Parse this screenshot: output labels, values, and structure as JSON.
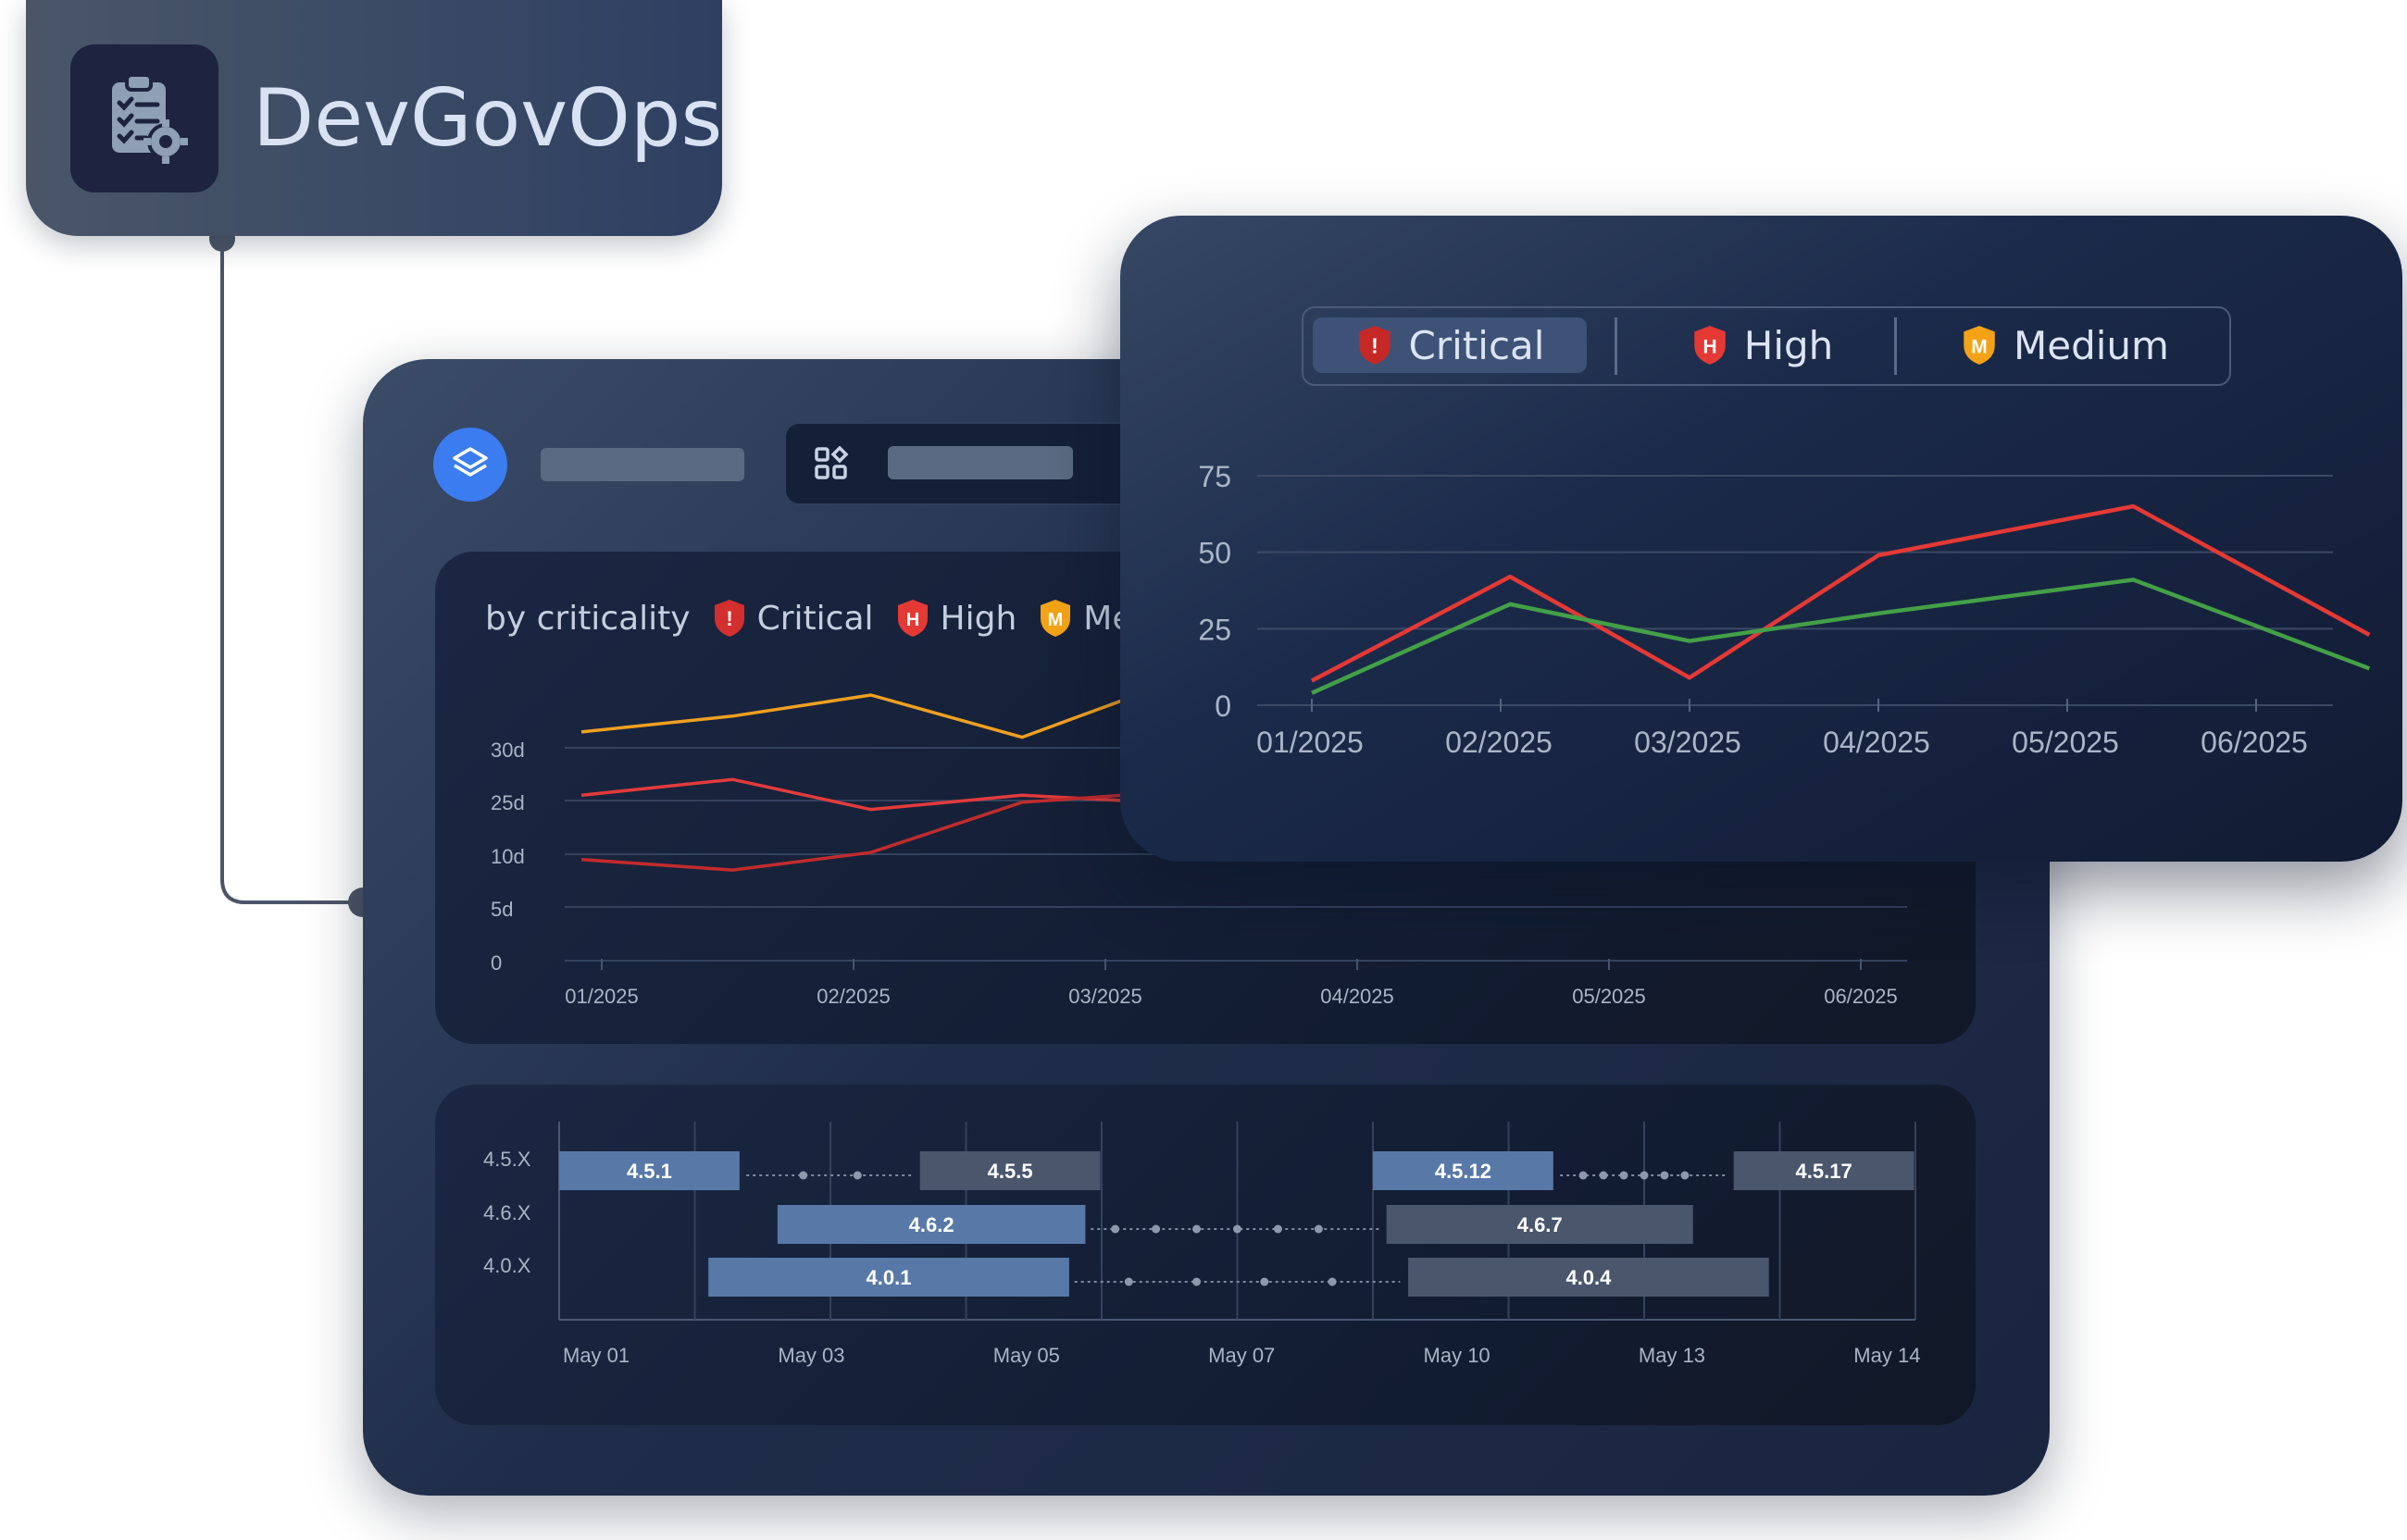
{
  "brand": {
    "title": "DevGovOps",
    "icon": "clipboard-gear-icon"
  },
  "main_panel": {
    "layer_icon": "layers-icon",
    "apps_icon": "apps-grid-icon"
  },
  "criticality_card": {
    "heading": "by criticality",
    "legend": [
      {
        "badge": "!",
        "label": "Critical",
        "color": "#d32f2f"
      },
      {
        "badge": "H",
        "label": "High",
        "color": "#e53935"
      },
      {
        "badge": "M",
        "label": "Medium",
        "color": "#f4a316"
      }
    ]
  },
  "front_card": {
    "tabs": [
      {
        "badge": "!",
        "label": "Critical",
        "active": true
      },
      {
        "badge": "H",
        "label": "High",
        "active": false
      },
      {
        "badge": "M",
        "label": "Medium",
        "active": false
      }
    ]
  },
  "chart_data": [
    {
      "type": "line",
      "yticks": [
        "0",
        "5d",
        "10d",
        "25d",
        "30d"
      ],
      "x": [
        "01/2025",
        "02/2025",
        "03/2025",
        "04/2025",
        "05/2025",
        "06/2025"
      ],
      "series": [
        {
          "color": "#f0a020",
          "points": [
            [
              0,
              31.5
            ],
            [
              0.6,
              33
            ],
            [
              1.15,
              35
            ],
            [
              1.75,
              31
            ],
            [
              2.15,
              34.5
            ]
          ]
        },
        {
          "color": "#e23b3b",
          "points": [
            [
              0,
              25.5
            ],
            [
              0.6,
              27
            ],
            [
              1.15,
              22.5
            ],
            [
              1.75,
              25.5
            ],
            [
              2.15,
              25
            ]
          ]
        },
        {
          "color": "#c22b2b",
          "points": [
            [
              0,
              9.5
            ],
            [
              0.6,
              8.5
            ],
            [
              1.15,
              10.5
            ],
            [
              1.75,
              24.5
            ],
            [
              2.15,
              25.5
            ]
          ]
        }
      ]
    },
    {
      "type": "line",
      "yticks": [
        "0",
        "25",
        "50",
        "75"
      ],
      "ylim": [
        0,
        75
      ],
      "x": [
        "01/2025",
        "02/2025",
        "03/2025",
        "04/2025",
        "05/2025",
        "06/2025"
      ],
      "series": [
        {
          "color": "#e53935",
          "points": [
            [
              0,
              8
            ],
            [
              1.05,
              42
            ],
            [
              2.0,
              9
            ],
            [
              3.0,
              49
            ],
            [
              4.35,
              65
            ],
            [
              5.6,
              23
            ]
          ]
        },
        {
          "color": "#43a047",
          "points": [
            [
              0,
              4
            ],
            [
              1.05,
              33
            ],
            [
              2.0,
              21
            ],
            [
              3.0,
              30
            ],
            [
              4.35,
              41
            ],
            [
              5.6,
              12
            ]
          ]
        }
      ]
    },
    {
      "type": "gantt",
      "rows": [
        "4.5.X",
        "4.6.X",
        "4.0.X"
      ],
      "x": [
        "May 01",
        "May 03",
        "May 05",
        "May 07",
        "May 10",
        "May 13",
        "May 14"
      ],
      "bars": [
        {
          "row": 0,
          "label": "4.5.1",
          "start": 0,
          "end": 1.33,
          "tone": "light"
        },
        {
          "row": 0,
          "label": "4.5.5",
          "start": 2.66,
          "end": 3.99,
          "tone": "dark"
        },
        {
          "row": 0,
          "label": "4.5.12",
          "start": 6.0,
          "end": 7.33,
          "tone": "light"
        },
        {
          "row": 0,
          "label": "4.5.17",
          "start": 8.66,
          "end": 9.99,
          "tone": "dark"
        },
        {
          "row": 1,
          "label": "4.6.2",
          "start": 1.61,
          "end": 3.88,
          "tone": "light"
        },
        {
          "row": 1,
          "label": "4.6.7",
          "start": 6.1,
          "end": 8.36,
          "tone": "dark"
        },
        {
          "row": 2,
          "label": "4.0.1",
          "start": 1.1,
          "end": 3.76,
          "tone": "light"
        },
        {
          "row": 2,
          "label": "4.0.4",
          "start": 6.26,
          "end": 8.92,
          "tone": "dark"
        }
      ],
      "dots": [
        {
          "row": 0,
          "from": 1.38,
          "to": 2.6,
          "points": [
            1.8,
            2.2
          ]
        },
        {
          "row": 0,
          "from": 7.38,
          "to": 8.6,
          "points": [
            7.55,
            7.7,
            7.85,
            8.0,
            8.15,
            8.3
          ]
        },
        {
          "row": 1,
          "from": 3.92,
          "to": 6.05,
          "points": [
            4.1,
            4.4,
            4.7,
            5.0,
            5.3,
            5.6
          ]
        },
        {
          "row": 2,
          "from": 3.8,
          "to": 6.2,
          "points": [
            4.2,
            4.7,
            5.2,
            5.7
          ]
        }
      ]
    }
  ]
}
